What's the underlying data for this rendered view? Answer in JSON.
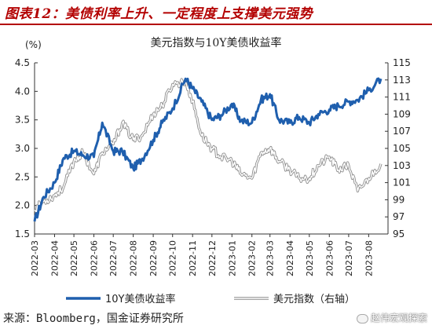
{
  "figure_title": "图表12：美债利率上升、一定程度上支撑美元强势",
  "source": "来源：Bloomberg，国金证券研究所",
  "watermark": "赵伟宏观探索",
  "chart_data": {
    "type": "line",
    "title": "美元指数与10Y美债收益率",
    "ylabel_left": "(%)",
    "left_axis": {
      "ylim": [
        1.5,
        4.5
      ],
      "ticks": [
        "1.5",
        "2.0",
        "2.5",
        "3.0",
        "3.5",
        "4.0",
        "4.5"
      ]
    },
    "right_axis": {
      "ylim": [
        95,
        115
      ],
      "ticks": [
        "95",
        "97",
        "99",
        "101",
        "103",
        "105",
        "107",
        "109",
        "111",
        "113",
        "115"
      ]
    },
    "x_ticks": [
      "2022-03",
      "2022-04",
      "2022-05",
      "2022-06",
      "2022-07",
      "2022-08",
      "2022-09",
      "2022-10",
      "2022-11",
      "2022-12",
      "2023-01",
      "2023-02",
      "2023-03",
      "2023-04",
      "2023-05",
      "2023-06",
      "2023-07",
      "2023-08"
    ],
    "grid": false,
    "legend_position": "bottom",
    "series": [
      {
        "name": "10Y美债收益率",
        "axis": "left",
        "color": "#1f5fae",
        "x": [
          "2022-03-01",
          "2022-03-15",
          "2022-04-01",
          "2022-04-15",
          "2022-05-01",
          "2022-05-15",
          "2022-06-01",
          "2022-06-14",
          "2022-07-01",
          "2022-07-15",
          "2022-08-01",
          "2022-08-15",
          "2022-09-01",
          "2022-09-15",
          "2022-10-01",
          "2022-10-21",
          "2022-11-01",
          "2022-11-15",
          "2022-12-01",
          "2022-12-15",
          "2023-01-01",
          "2023-01-15",
          "2023-02-01",
          "2023-02-15",
          "2023-03-01",
          "2023-03-15",
          "2023-04-01",
          "2023-04-15",
          "2023-05-01",
          "2023-05-15",
          "2023-06-01",
          "2023-06-15",
          "2023-07-01",
          "2023-07-15",
          "2023-08-01",
          "2023-08-20"
        ],
        "values": [
          1.72,
          2.15,
          2.4,
          2.83,
          2.95,
          2.88,
          2.85,
          3.45,
          2.95,
          2.95,
          2.65,
          2.82,
          3.15,
          3.45,
          3.7,
          4.22,
          4.05,
          3.82,
          3.5,
          3.58,
          3.78,
          3.48,
          3.45,
          3.85,
          3.95,
          3.5,
          3.45,
          3.55,
          3.45,
          3.6,
          3.68,
          3.75,
          3.82,
          3.85,
          4.02,
          4.22
        ]
      },
      {
        "name": "美元指数（右轴）",
        "axis": "right",
        "color": "#b5b5b5",
        "x": [
          "2022-03-01",
          "2022-03-15",
          "2022-04-01",
          "2022-04-15",
          "2022-05-01",
          "2022-05-15",
          "2022-06-01",
          "2022-06-14",
          "2022-07-01",
          "2022-07-15",
          "2022-08-01",
          "2022-08-15",
          "2022-09-01",
          "2022-09-15",
          "2022-10-01",
          "2022-10-21",
          "2022-11-01",
          "2022-11-15",
          "2022-12-01",
          "2022-12-15",
          "2023-01-01",
          "2023-01-15",
          "2023-02-01",
          "2023-02-15",
          "2023-03-01",
          "2023-03-15",
          "2023-04-01",
          "2023-04-15",
          "2023-05-01",
          "2023-05-15",
          "2023-06-01",
          "2023-06-15",
          "2023-07-01",
          "2023-07-15",
          "2023-08-01",
          "2023-08-20"
        ],
        "values": [
          97.8,
          98.8,
          99.5,
          100.5,
          103.5,
          104.5,
          102.0,
          104.5,
          105.5,
          108.0,
          106.0,
          106.5,
          109.0,
          110.0,
          112.5,
          112.8,
          110.5,
          106.5,
          105.0,
          104.0,
          103.5,
          102.0,
          101.5,
          104.5,
          105.0,
          103.5,
          102.5,
          101.5,
          101.5,
          103.0,
          104.0,
          102.5,
          103.0,
          100.0,
          101.5,
          103.2
        ]
      }
    ]
  }
}
